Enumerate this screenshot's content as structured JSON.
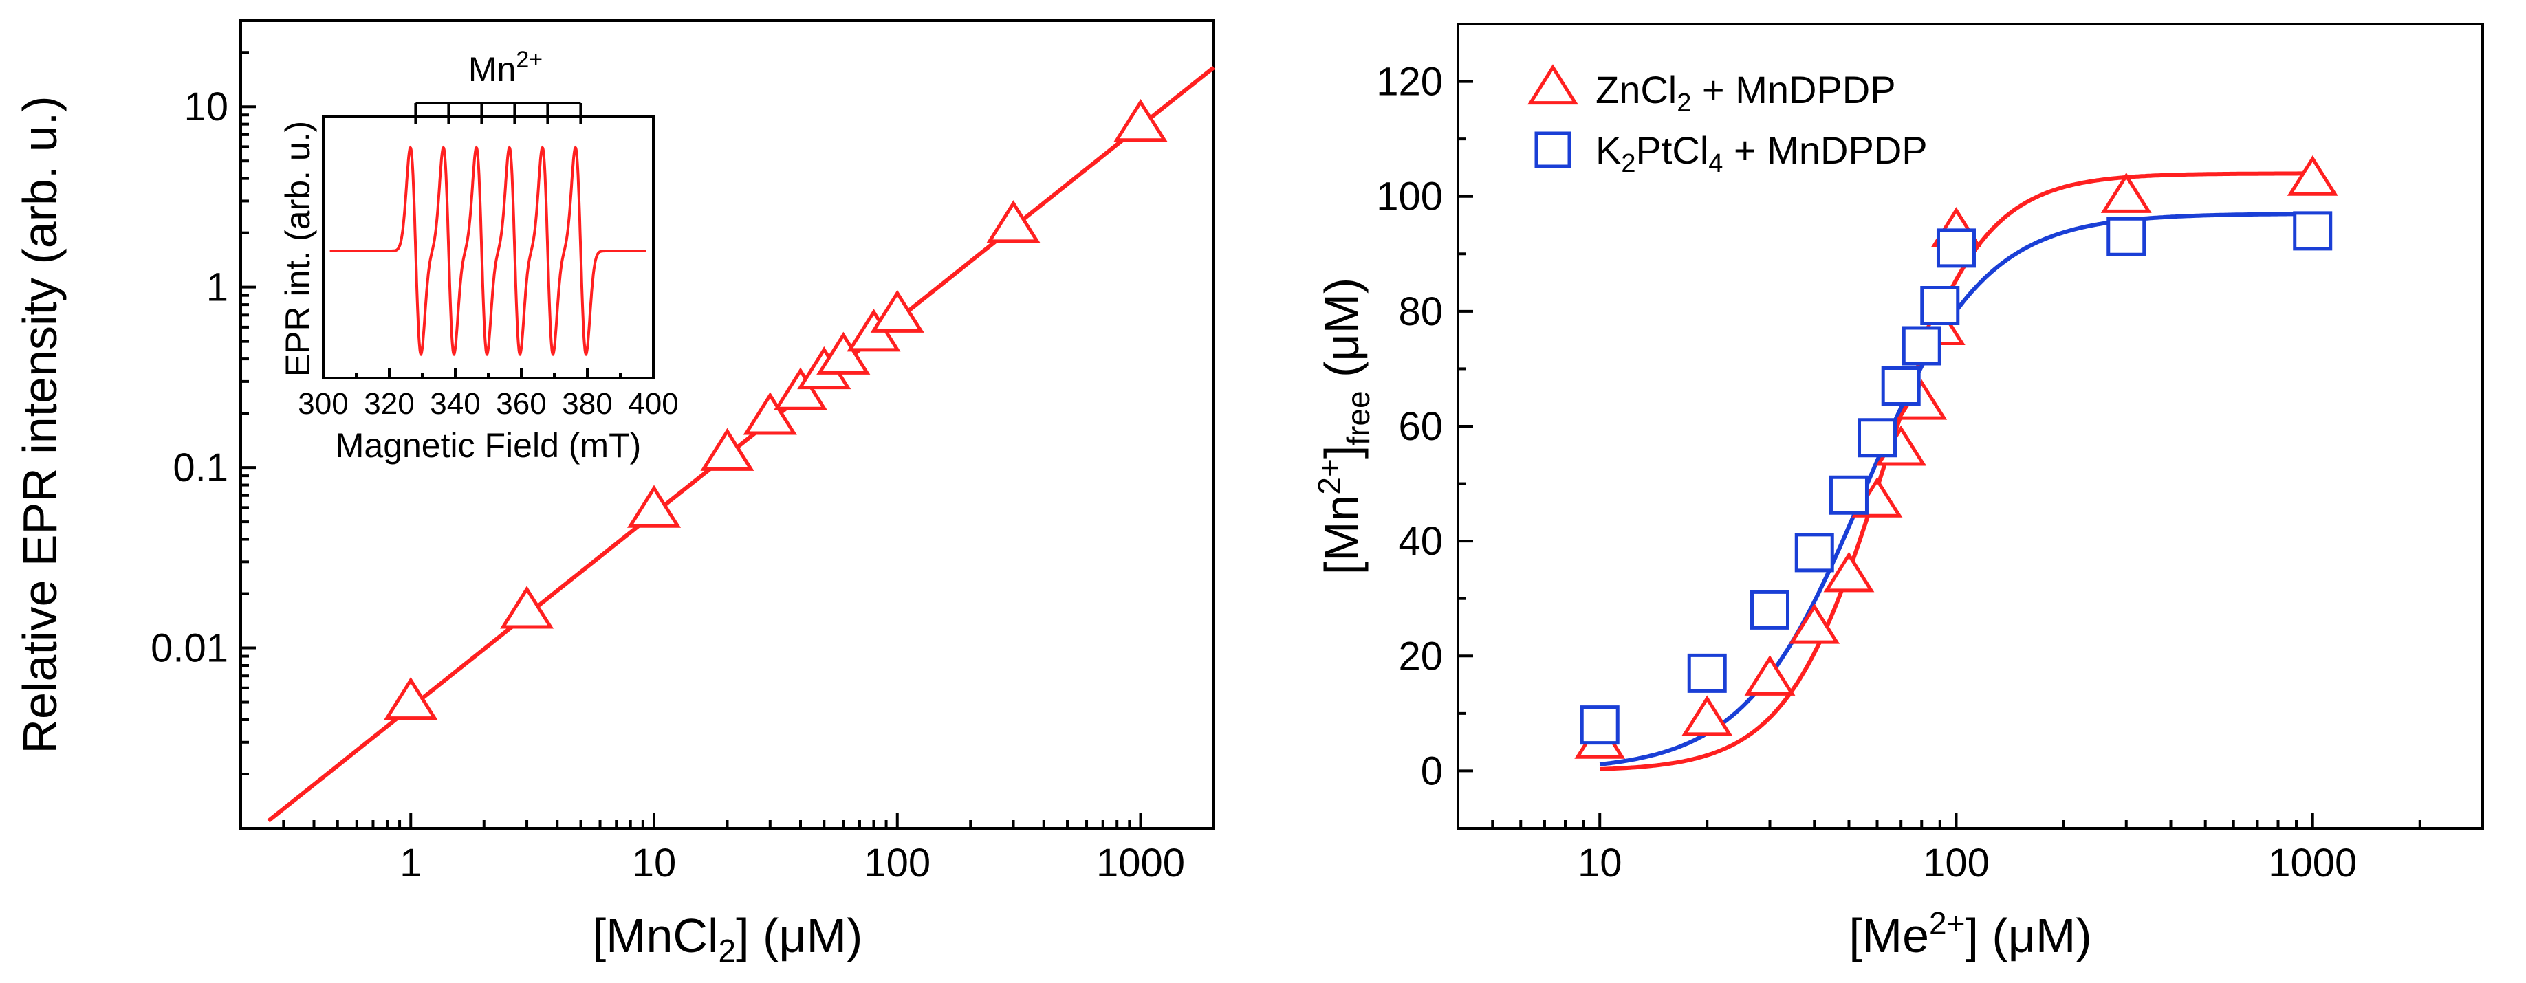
{
  "chart_data": [
    {
      "type": "scatter",
      "scale": {
        "x": "log",
        "y": "log"
      },
      "xlim": [
        0.2,
        2000
      ],
      "ylim": [
        0.001,
        30
      ],
      "xlabel": "[MnCl2] (μM)",
      "xlabel_parts": {
        "pre": "[MnCl",
        "sub": "2",
        "post": "] (μM)"
      },
      "ylabel": "Relative EPR intensity (arb. u.)",
      "x_ticks": [
        1,
        10,
        100,
        1000
      ],
      "x_tick_labels": [
        "1",
        "10",
        "100",
        "1000"
      ],
      "y_ticks": [
        0.01,
        0.1,
        1,
        10
      ],
      "y_tick_labels": [
        "0.01",
        "0.1",
        "1",
        "10"
      ],
      "series": [
        {
          "marker": "triangle",
          "color": "#ff2020",
          "x": [
            1,
            3,
            10,
            20,
            30,
            40,
            50,
            60,
            80,
            100,
            300,
            1000
          ],
          "y": [
            0.005,
            0.016,
            0.058,
            0.12,
            0.19,
            0.26,
            0.34,
            0.41,
            0.55,
            0.7,
            2.2,
            8.0
          ]
        }
      ],
      "fit_line": {
        "color": "#ff2020",
        "x": [
          0.26,
          2000
        ],
        "y": [
          0.0011,
          16.5
        ]
      },
      "inset": {
        "type": "line",
        "xlim": [
          300,
          400
        ],
        "x_ticks": [
          300,
          320,
          340,
          360,
          380,
          400
        ],
        "x_tick_labels": [
          "300",
          "320",
          "340",
          "360",
          "380",
          "400"
        ],
        "xlabel": "Magnetic Field (mT)",
        "ylabel": "EPR int. (arb. u.)",
        "annotation": {
          "pre": "Mn",
          "sup": "2+"
        },
        "color": "#ff2020",
        "lines_center_mT": [
          328,
          338,
          348,
          358,
          368,
          378
        ]
      }
    },
    {
      "type": "scatter",
      "scale": {
        "x": "log",
        "y": "linear"
      },
      "xlim": [
        4,
        3000
      ],
      "ylim": [
        -10,
        130
      ],
      "xlabel": "[Me2+] (μM)",
      "xlabel_parts": {
        "pre": "[Me",
        "sup": "2+",
        "post": "] (μM)"
      },
      "ylabel": "[Mn2+]free (μM)",
      "ylabel_parts": {
        "pre": "[Mn",
        "sup": "2+",
        "mid": "]",
        "sub": "free",
        "post": " (μM)"
      },
      "x_ticks": [
        10,
        100,
        1000
      ],
      "x_tick_labels": [
        "10",
        "100",
        "1000"
      ],
      "y_ticks": [
        0,
        20,
        40,
        60,
        80,
        100,
        120
      ],
      "y_tick_labels": [
        "0",
        "20",
        "40",
        "60",
        "80",
        "100",
        "120"
      ],
      "legend": {
        "position": "top-left"
      },
      "series": [
        {
          "name": "ZnCl2 + MnDPDP",
          "name_parts": {
            "pre": "ZnCl",
            "sub": "2",
            "post": " + MnDPDP"
          },
          "marker": "triangle",
          "color": "#ff2020",
          "x": [
            10,
            20,
            30,
            40,
            50,
            60,
            70,
            80,
            90,
            100,
            300,
            1000
          ],
          "y": [
            5,
            9,
            16,
            25,
            34,
            47,
            56,
            64,
            77,
            94,
            100,
            103
          ]
        },
        {
          "name": "K2PtCl4 + MnDPDP",
          "name_parts": {
            "pre": "K",
            "sub1": "2",
            "mid": "PtCl",
            "sub2": "4",
            "post": " + MnDPDP"
          },
          "marker": "square",
          "color": "#1a3fd6",
          "x": [
            10,
            20,
            30,
            40,
            50,
            60,
            70,
            80,
            90,
            100,
            300,
            1000
          ],
          "y": [
            8,
            17,
            28,
            38,
            48,
            58,
            67,
            74,
            81,
            91,
            93,
            94
          ]
        }
      ],
      "fits": [
        {
          "color": "#ff2020",
          "max": 104,
          "half": 62,
          "n": 3.2
        },
        {
          "color": "#1a3fd6",
          "max": 97,
          "half": 55,
          "n": 2.6
        }
      ]
    }
  ]
}
